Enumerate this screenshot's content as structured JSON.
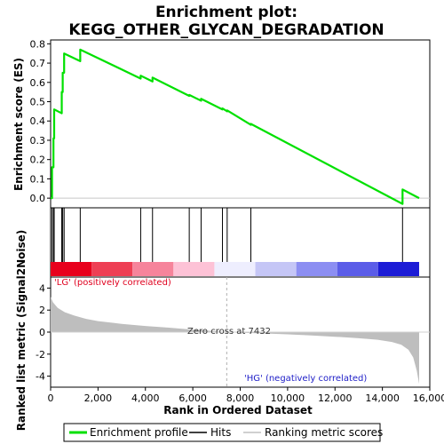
{
  "chart_data": {
    "type": "line",
    "title_line1": "Enrichment plot:",
    "title_line2": "KEGG_OTHER_GLYCAN_DEGRADATION",
    "es_ylabel": "Enrichment score (ES)",
    "metric_ylabel_line1": "Ranked list metric (Signal2Noise)",
    "xlabel": "Rank in Ordered Dataset",
    "xlim": [
      0,
      16000
    ],
    "x_ticks": [
      0,
      2000,
      4000,
      6000,
      8000,
      10000,
      12000,
      14000,
      16000
    ],
    "x_tick_labels": [
      "0",
      "2,000",
      "4,000",
      "6,000",
      "8,000",
      "10,000",
      "12,000",
      "14,000",
      "16,000"
    ],
    "es_ylim": [
      -0.05,
      0.82
    ],
    "es_ticks": [
      0.0,
      0.1,
      0.2,
      0.3,
      0.4,
      0.5,
      0.6,
      0.7,
      0.8
    ],
    "es_tick_labels": [
      "0.0",
      "0.1",
      "0.2",
      "0.3",
      "0.4",
      "0.5",
      "0.6",
      "0.7",
      "0.8"
    ],
    "metric_ylim": [
      -5,
      5
    ],
    "metric_ticks": [
      -4,
      -2,
      0,
      2,
      4
    ],
    "metric_tick_labels": [
      "-4",
      "-2",
      "0",
      "2",
      "4"
    ],
    "total_rank": 15550,
    "hits": [
      60,
      120,
      150,
      470,
      510,
      570,
      1250,
      3800,
      4300,
      5850,
      6350,
      7250,
      7450,
      8450,
      14850
    ],
    "es_profile": {
      "x": [
        0,
        60,
        60,
        120,
        120,
        150,
        150,
        470,
        470,
        510,
        510,
        570,
        570,
        1250,
        1250,
        3800,
        3800,
        4300,
        4300,
        5850,
        5850,
        6350,
        6350,
        7250,
        7250,
        7450,
        7450,
        8450,
        8450,
        14850,
        14850,
        15550
      ],
      "y": [
        0.0,
        0.0,
        0.16,
        0.16,
        0.31,
        0.31,
        0.46,
        0.44,
        0.55,
        0.55,
        0.65,
        0.65,
        0.75,
        0.71,
        0.77,
        0.62,
        0.635,
        0.605,
        0.625,
        0.53,
        0.535,
        0.505,
        0.515,
        0.46,
        0.465,
        0.45,
        0.455,
        0.38,
        0.385,
        -0.03,
        0.045,
        0.0
      ]
    },
    "metric_profile": {
      "x": [
        0,
        100,
        300,
        600,
        1000,
        1500,
        2000,
        3000,
        4000,
        5000,
        6000,
        7000,
        7432,
        8000,
        9000,
        10000,
        11000,
        12000,
        13000,
        13800,
        14400,
        14800,
        15100,
        15300,
        15450,
        15550
      ],
      "y": [
        3.2,
        2.7,
        2.2,
        1.8,
        1.5,
        1.2,
        1.0,
        0.75,
        0.55,
        0.4,
        0.22,
        0.08,
        0.0,
        -0.06,
        -0.12,
        -0.2,
        -0.3,
        -0.42,
        -0.55,
        -0.7,
        -0.9,
        -1.15,
        -1.6,
        -2.3,
        -3.5,
        -4.7
      ]
    },
    "zero_cross_label": "Zero cross at 7432",
    "zero_cross_rank": 7432,
    "pos_label": "'LG' (positively correlated)",
    "neg_label": "'HG' (negatively correlated)",
    "heat_colors": [
      "#e8001c",
      "#ee3f54",
      "#f6849b",
      "#fdc2d6",
      "#eeeefe",
      "#c5c6f6",
      "#8c8ef2",
      "#5b5de8",
      "#1c1cd6"
    ],
    "colors": {
      "es_line": "#00e000",
      "hit": "#000000",
      "metric_fill": "#bebebe",
      "zero_line": "#c8c8c8"
    },
    "legend": {
      "items": [
        {
          "label": "Enrichment profile",
          "icon": "green-line-icon"
        },
        {
          "label": "Hits",
          "icon": "black-line-icon"
        },
        {
          "label": "Ranking metric scores",
          "icon": "gray-line-icon"
        }
      ]
    }
  }
}
